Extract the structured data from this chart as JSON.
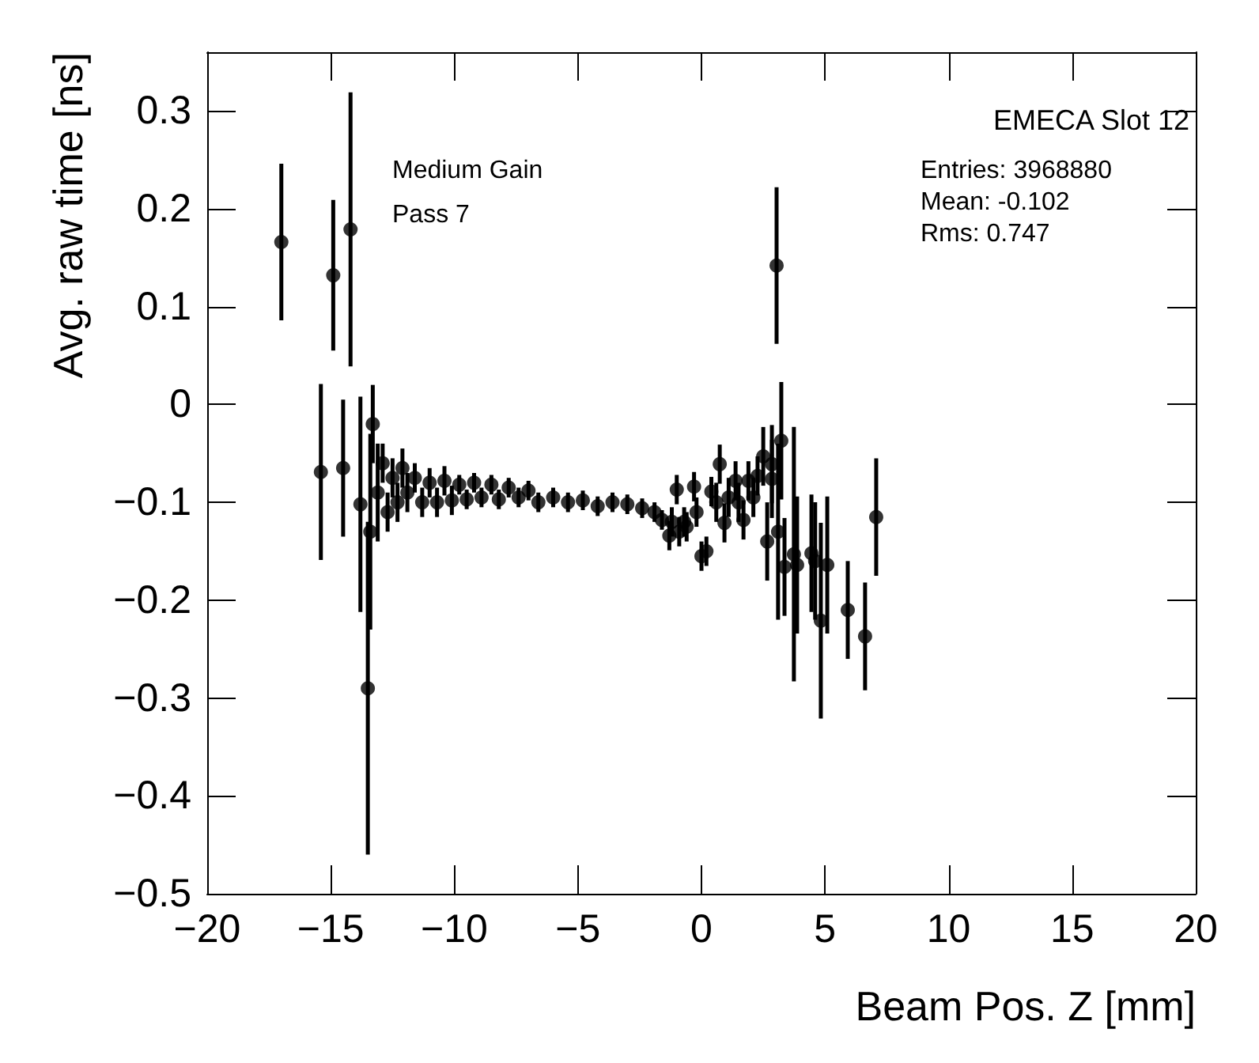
{
  "chart_data": {
    "type": "scatter",
    "title": "EMECA Slot 12",
    "xlabel": "Beam Pos. Z [mm]",
    "ylabel": "Avg. raw time [ns]",
    "annotations": [
      "Medium Gain",
      "Pass 7",
      "Entries: 3968880",
      "Mean: -0.102",
      "Rms: 0.747"
    ],
    "series": [
      {
        "color": "#000000",
        "x": [
          -17.0,
          -15.4,
          -14.9,
          -14.5,
          -14.2,
          -13.8,
          -13.5,
          -13.4,
          -13.3,
          -13.1,
          -12.9,
          -12.7,
          -12.5,
          -12.3,
          -12.1,
          -11.9,
          -11.6,
          -11.3,
          -11.0,
          -10.7,
          -10.4,
          -10.1,
          -9.8,
          -9.5,
          -9.2,
          -8.9,
          -8.5,
          -8.2,
          -7.8,
          -7.4,
          -7.0,
          -6.6,
          -6.0,
          -5.4,
          -4.8,
          -4.2,
          -3.6,
          -3.0,
          -2.4,
          -1.9,
          -1.6,
          -1.3,
          -1.2,
          -1.0,
          -0.9,
          -0.7,
          -0.6,
          -0.3,
          -0.2,
          0.0,
          0.2,
          0.4,
          0.6,
          0.74,
          0.93,
          1.1,
          1.38,
          1.5,
          1.7,
          1.9,
          2.1,
          2.27,
          2.5,
          2.66,
          2.85,
          2.85,
          3.04,
          3.1,
          3.23,
          3.36,
          3.74,
          3.87,
          4.45,
          4.6,
          4.83,
          5.09,
          5.92,
          6.62,
          7.07
        ],
        "values": [
          0.166,
          -0.069,
          0.132,
          -0.065,
          0.179,
          -0.102,
          -0.29,
          -0.13,
          -0.02,
          -0.09,
          -0.06,
          -0.11,
          -0.075,
          -0.1,
          -0.065,
          -0.09,
          -0.075,
          -0.1,
          -0.08,
          -0.1,
          -0.078,
          -0.098,
          -0.082,
          -0.097,
          -0.08,
          -0.095,
          -0.082,
          -0.097,
          -0.085,
          -0.095,
          -0.088,
          -0.1,
          -0.095,
          -0.1,
          -0.098,
          -0.104,
          -0.1,
          -0.102,
          -0.106,
          -0.11,
          -0.118,
          -0.134,
          -0.12,
          -0.087,
          -0.13,
          -0.12,
          -0.125,
          -0.084,
          -0.11,
          -0.155,
          -0.15,
          -0.089,
          -0.1,
          -0.061,
          -0.121,
          -0.095,
          -0.078,
          -0.1,
          -0.118,
          -0.078,
          -0.095,
          -0.073,
          -0.053,
          -0.14,
          -0.061,
          -0.076,
          0.142,
          -0.13,
          -0.037,
          -0.166,
          -0.153,
          -0.164,
          -0.152,
          -0.16,
          -0.221,
          -0.164,
          -0.21,
          -0.237,
          -0.115
        ],
        "errors": [
          0.08,
          0.09,
          0.077,
          0.07,
          0.14,
          0.11,
          0.17,
          0.1,
          0.04,
          0.05,
          0.02,
          0.02,
          0.02,
          0.02,
          0.02,
          0.02,
          0.015,
          0.015,
          0.015,
          0.015,
          0.015,
          0.015,
          0.01,
          0.01,
          0.01,
          0.01,
          0.01,
          0.01,
          0.01,
          0.01,
          0.01,
          0.01,
          0.01,
          0.01,
          0.01,
          0.01,
          0.01,
          0.01,
          0.01,
          0.01,
          0.01,
          0.015,
          0.015,
          0.015,
          0.015,
          0.015,
          0.015,
          0.015,
          0.015,
          0.015,
          0.015,
          0.015,
          0.02,
          0.02,
          0.02,
          0.02,
          0.02,
          0.02,
          0.02,
          0.02,
          0.02,
          0.02,
          0.03,
          0.04,
          0.04,
          0.04,
          0.08,
          0.09,
          0.06,
          0.05,
          0.13,
          0.07,
          0.06,
          0.06,
          0.1,
          0.07,
          0.05,
          0.055,
          0.06
        ]
      }
    ],
    "xlim": [
      -20,
      20
    ],
    "xticks": [
      -20,
      -15,
      -10,
      -5,
      0,
      5,
      10,
      15,
      20
    ],
    "ylim": [
      -0.5,
      0.36
    ],
    "yticks": [
      -0.5,
      -0.4,
      -0.3,
      -0.2,
      -0.1,
      0,
      0.1,
      0.2,
      0.3
    ],
    "marker": "circle"
  }
}
